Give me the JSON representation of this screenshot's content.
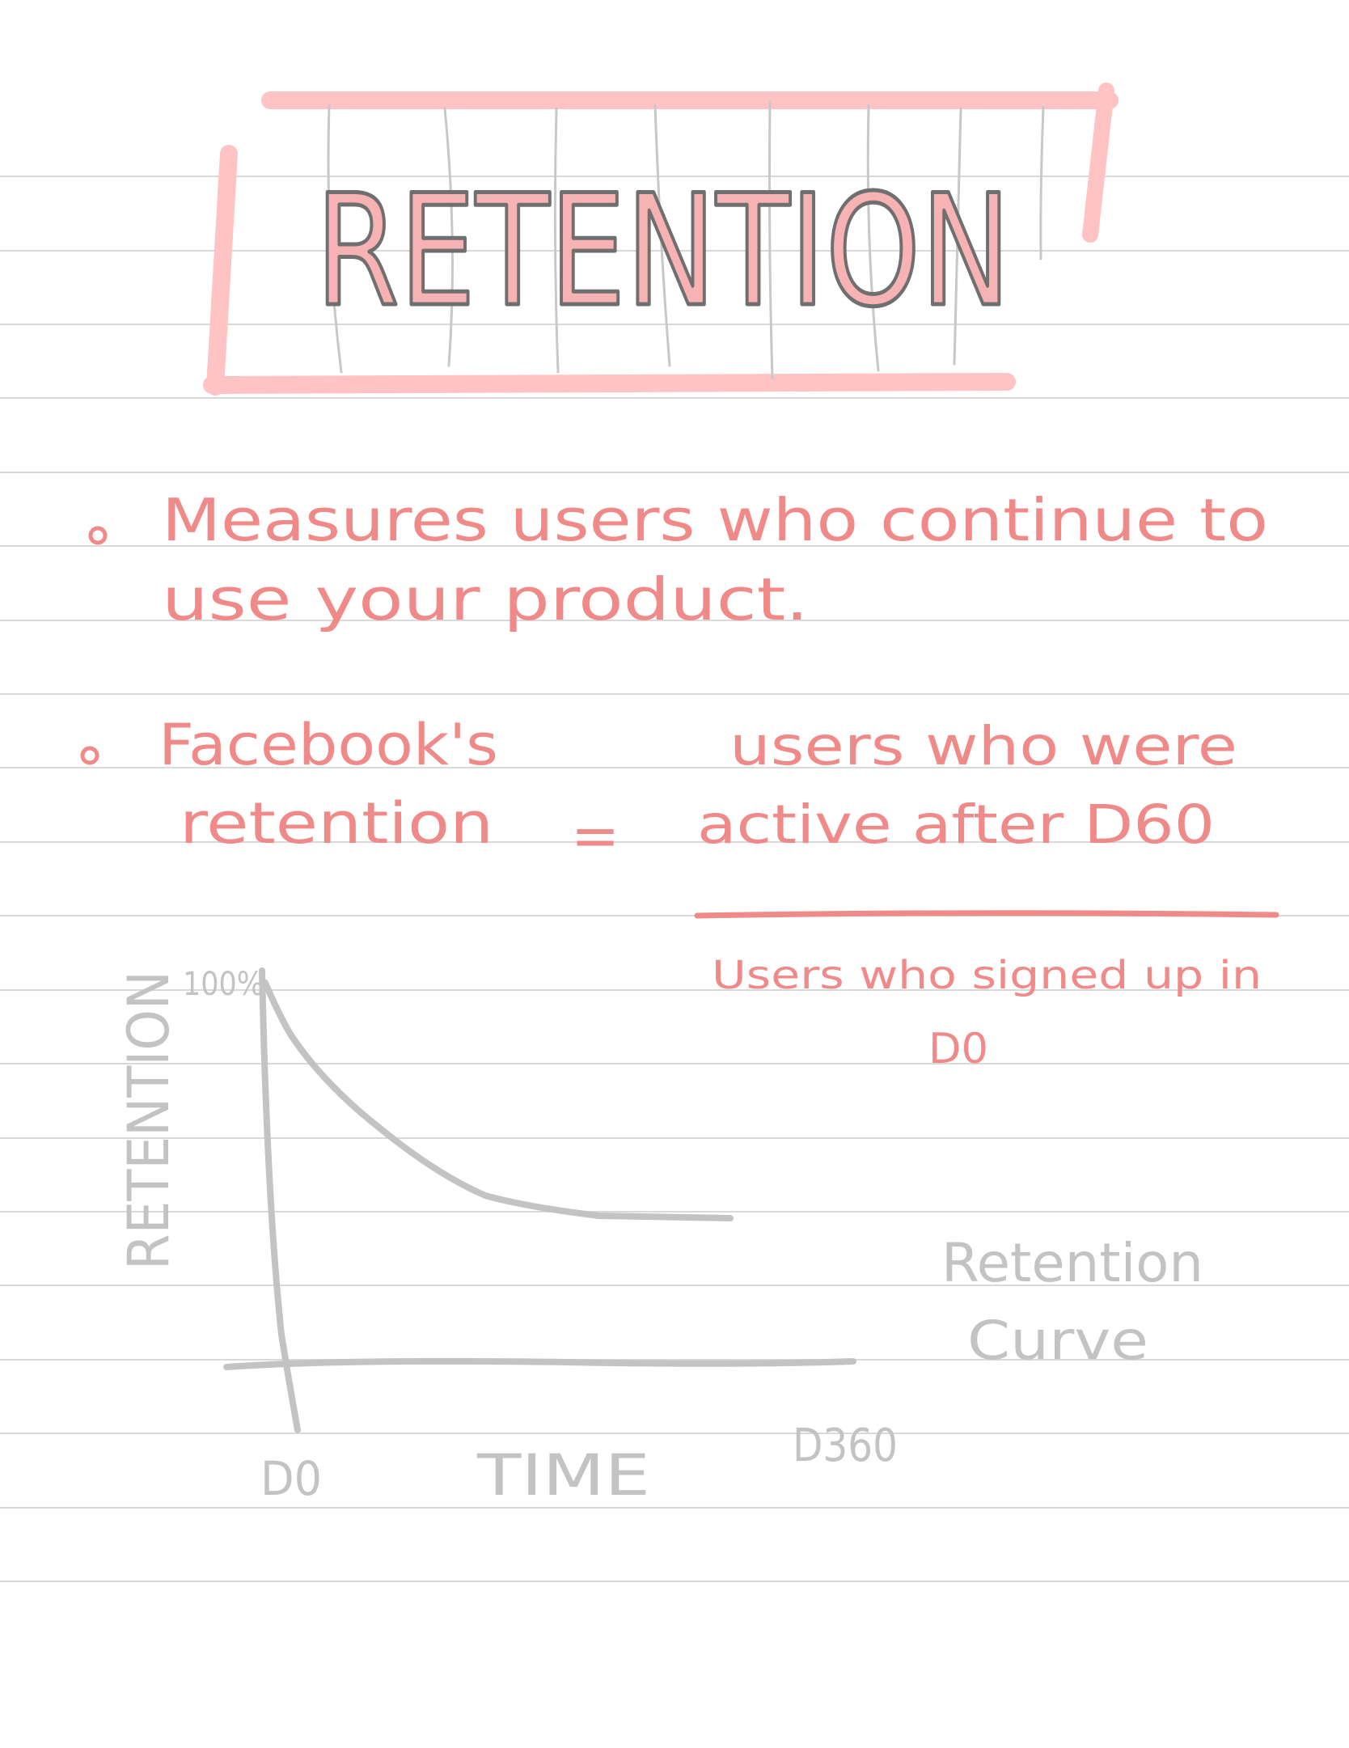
{
  "title": "RETENTION",
  "bullets": [
    {
      "line1": "Measures users who continue to",
      "line2": "use your product."
    },
    {
      "label_line1": "Facebook's",
      "label_line2": "retention",
      "equals": "=",
      "numerator_line1": "users who were",
      "numerator_line2": "active after D60",
      "denominator_line1": "Users who signed up in",
      "denominator_line2": "D0"
    }
  ],
  "chart_data": {
    "type": "line",
    "xlabel": "TIME",
    "ylabel": "RETENTION",
    "y_max_label": "100%",
    "x_start_label": "D0",
    "x_end_label": "D360",
    "annotation_line1": "Retention",
    "annotation_line2": "Curve"
  },
  "colors": {
    "ink_red": "#f08a88",
    "ink_gray": "#c3c3c3",
    "title_fill": "#f7b3b3",
    "title_outline": "#6f6f6f",
    "frame": "#ffc3c3",
    "rule": "#d9d9d9"
  }
}
